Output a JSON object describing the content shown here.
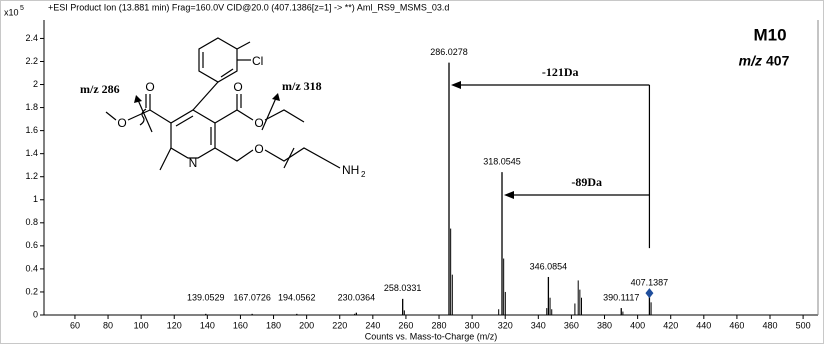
{
  "chart_data": {
    "type": "spectrum",
    "title": "+ESI Product Ion (13.881 min) Frag=160.0V CID@20.0 (407.1386[z=1] -> **) Aml_RS9_MSMS_03.d",
    "y_multiplier": {
      "base": "x10",
      "exponent": "5"
    },
    "x_label": "Counts vs. Mass-to-Charge (m/z)",
    "x": [
      139.0529,
      167.0726,
      194.0562,
      230.0364,
      258.0331,
      286.0278,
      318.0545,
      346.0854,
      390.1117,
      407.1387
    ],
    "values": [
      0.01,
      0.01,
      0.01,
      0.02,
      0.14,
      2.19,
      1.24,
      0.33,
      0.06,
      0.19
    ],
    "minor_x": [
      229.0,
      259.04,
      287.03,
      288.03,
      316.05,
      319.06,
      320.06,
      345.1,
      347.09,
      348.1,
      362.1,
      364.1,
      365.1,
      366.1,
      391.1,
      408.14
    ],
    "minor_values": [
      0.01,
      0.04,
      0.75,
      0.35,
      0.05,
      0.49,
      0.2,
      0.06,
      0.15,
      0.05,
      0.1,
      0.3,
      0.22,
      0.15,
      0.03,
      0.11
    ],
    "color": "#000000",
    "precursor_color": "#1f4e9c",
    "xlim": [
      41.3,
      509
    ],
    "ylim": [
      0,
      2.56
    ],
    "xticks": [
      60,
      80,
      100,
      120,
      140,
      160,
      180,
      200,
      220,
      240,
      260,
      280,
      300,
      320,
      340,
      360,
      380,
      400,
      420,
      440,
      460,
      480,
      500
    ],
    "yticks": [
      0,
      0.2,
      0.4,
      0.6,
      0.8,
      1,
      1.2,
      1.4,
      1.6,
      1.8,
      2,
      2.2,
      2.4
    ],
    "annotations": {
      "compound": "M10",
      "precursor_prefix": "m/z",
      "precursor_mass": "407",
      "loss_1": "-121Da",
      "loss_2": "-89Da"
    }
  },
  "structure": {
    "fragment_left": "m/z 286",
    "fragment_right": "m/z 318",
    "chlorine": "Cl",
    "oxygens": [
      "O",
      "O",
      "O",
      "O",
      "O"
    ],
    "nitrogen": "N",
    "amine": {
      "symbol": "NH",
      "subscript": "2"
    }
  }
}
